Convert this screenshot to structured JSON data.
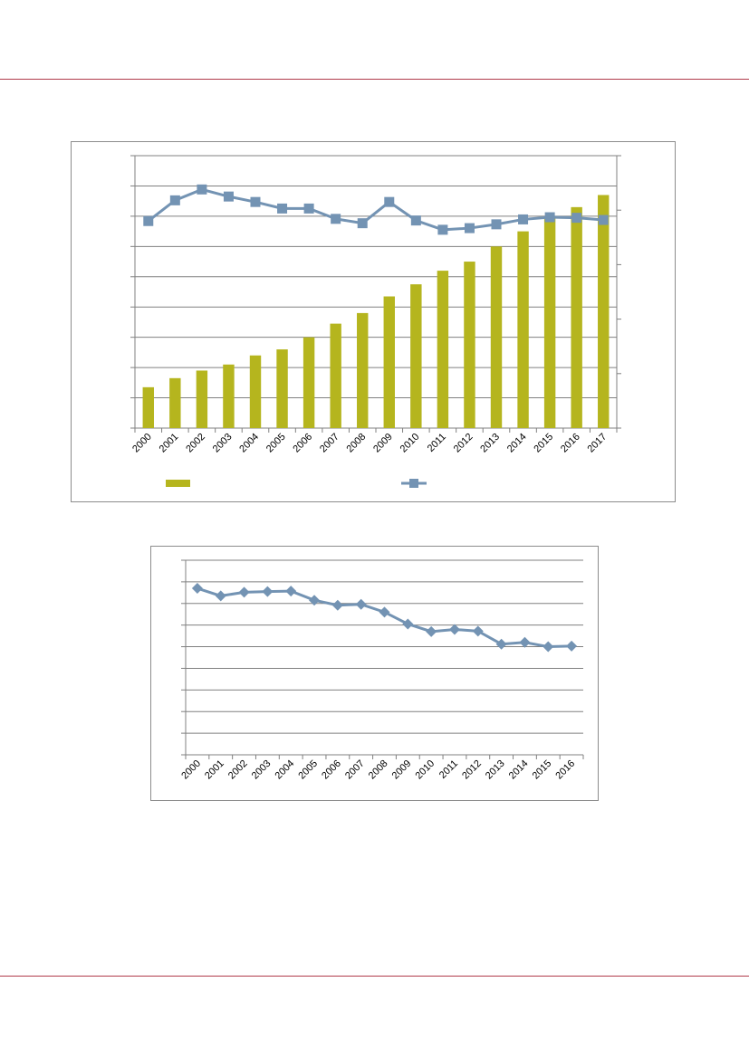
{
  "colors": {
    "rule": "#b03a4a",
    "bar": "#b5b51e",
    "line": "#7393b3",
    "grid": "#808080"
  },
  "chart_data": [
    {
      "type": "bar+line",
      "title": "",
      "categories": [
        "2000",
        "2001",
        "2002",
        "2003",
        "2004",
        "2005",
        "2006",
        "2007",
        "2008",
        "2009",
        "2010",
        "2011",
        "2012",
        "2013",
        "2014",
        "2015",
        "2016",
        "2017"
      ],
      "y_left_range": [
        0,
        9
      ],
      "y_right_range": [
        0,
        5
      ],
      "grid": true,
      "legend": "bottom",
      "series": [
        {
          "kind": "bar",
          "axis": "left",
          "marker": "none",
          "values": [
            1.35,
            1.65,
            1.9,
            2.1,
            2.4,
            2.6,
            3.0,
            3.45,
            3.8,
            4.35,
            4.75,
            5.2,
            5.5,
            6.0,
            6.5,
            6.95,
            7.3,
            7.7
          ]
        },
        {
          "kind": "line",
          "axis": "right",
          "marker": "square",
          "values": [
            3.8,
            4.18,
            4.38,
            4.25,
            4.15,
            4.03,
            4.03,
            3.84,
            3.76,
            4.15,
            3.81,
            3.64,
            3.67,
            3.74,
            3.83,
            3.87,
            3.86,
            3.82
          ]
        }
      ]
    },
    {
      "type": "line",
      "title": "",
      "categories": [
        "2000",
        "2001",
        "2002",
        "2003",
        "2004",
        "2005",
        "2006",
        "2007",
        "2008",
        "2009",
        "2010",
        "2011",
        "2012",
        "2013",
        "2014",
        "2015",
        "2016"
      ],
      "y_range": [
        0,
        9
      ],
      "grid": true,
      "series": [
        {
          "marker": "diamond",
          "values": [
            7.7,
            7.35,
            7.52,
            7.55,
            7.57,
            7.15,
            6.92,
            6.96,
            6.6,
            6.05,
            5.7,
            5.8,
            5.72,
            5.12,
            5.2,
            5.0,
            5.03
          ]
        }
      ]
    }
  ]
}
